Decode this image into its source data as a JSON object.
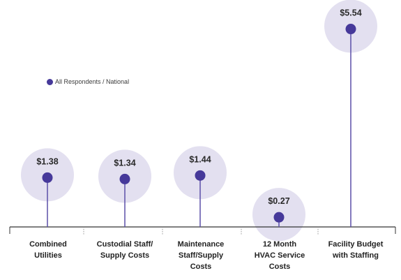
{
  "colors": {
    "bubble": "#e3e0f0",
    "marker": "#46399a",
    "stem": "#5b4fa8",
    "axis": "#333333",
    "text": "#222222"
  },
  "legend": {
    "label": "All Respondents / National"
  },
  "chart_data": {
    "type": "lollipop",
    "categories": [
      "Combined\nUtilities",
      "Custodial Staff/\nSupply Costs",
      "Maintenance\nStaff/Supply\nCosts",
      "12 Month\nHVAC Service\nCosts",
      "Facility Budget\nwith Staffing"
    ],
    "series": [
      {
        "name": "All Respondents / National",
        "values": [
          1.38,
          1.34,
          1.44,
          0.27,
          5.54
        ],
        "labels": [
          "$1.38",
          "$1.34",
          "$1.44",
          "$0.27",
          "$5.54"
        ]
      }
    ],
    "ylim": [
      0,
      6.0
    ],
    "grid": false,
    "legend_position": "upper-left"
  }
}
